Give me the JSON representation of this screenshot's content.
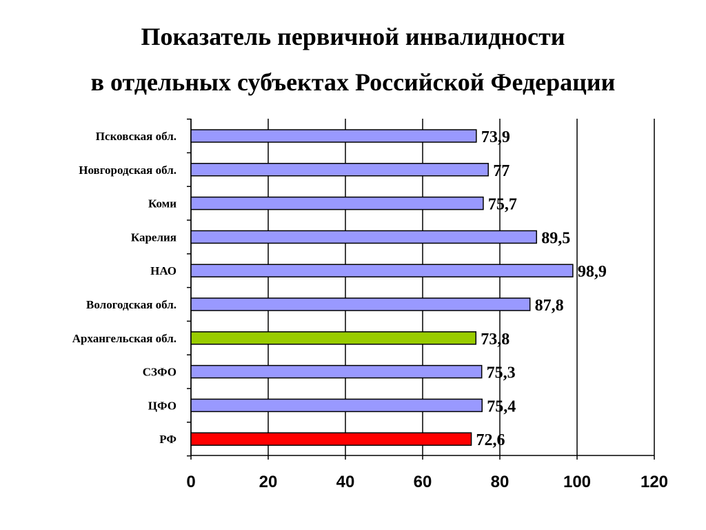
{
  "title": {
    "line1": "Показатель первичной инвалидности",
    "line2": "в отдельных субъектах Российской Федерации"
  },
  "colors": {
    "default_bar": "#9999ff",
    "highlight_green": "#99cc00",
    "highlight_red": "#ff0000",
    "gridline": "#000000"
  },
  "chart_data": {
    "type": "bar",
    "orientation": "horizontal",
    "categories": [
      "Псковская обл.",
      "Новгородская обл.",
      "Коми",
      "Карелия",
      "НАО",
      "Вологодская обл.",
      "Архангельская обл.",
      "СЗФО",
      "ЦФО",
      "РФ"
    ],
    "values": [
      73.9,
      77,
      75.7,
      89.5,
      98.9,
      87.8,
      73.8,
      75.3,
      75.4,
      72.6
    ],
    "value_labels": [
      "73,9",
      "77",
      "75,7",
      "89,5",
      "98,9",
      "87,8",
      "73,8",
      "75,3",
      "75,4",
      "72,6"
    ],
    "bar_colors": [
      "#9999ff",
      "#9999ff",
      "#9999ff",
      "#9999ff",
      "#9999ff",
      "#9999ff",
      "#99cc00",
      "#9999ff",
      "#9999ff",
      "#ff0000"
    ],
    "xlim": [
      0,
      120
    ],
    "xticks": [
      0,
      20,
      40,
      60,
      80,
      100,
      120
    ],
    "xtick_labels": [
      "0",
      "20",
      "40",
      "60",
      "80",
      "100",
      "120"
    ],
    "grid": "vertical",
    "legend": "none"
  }
}
